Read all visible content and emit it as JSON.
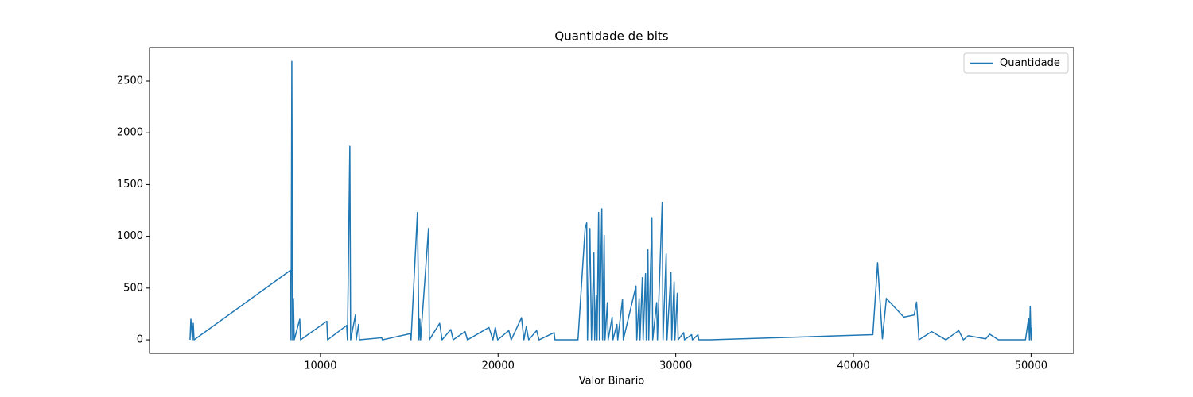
{
  "chart_data": {
    "type": "line",
    "title": "Quantidade de bits",
    "x_label": "Valor Binario",
    "x": [
      2660,
      2707,
      2797,
      2842,
      2886,
      8300,
      8345,
      8390,
      8434,
      8479,
      8524,
      8837,
      8882,
      10358,
      10403,
      11476,
      11521,
      11655,
      11700,
      11969,
      12013,
      12148,
      12192,
      13445,
      13490,
      15056,
      15100,
      15458,
      15548,
      15593,
      15637,
      16085,
      16130,
      16711,
      16845,
      17337,
      17472,
      18143,
      18277,
      19485,
      19709,
      19843,
      19977,
      20603,
      20738,
      21319,
      21453,
      21588,
      21722,
      22169,
      22304,
      23154,
      23199,
      24496,
      24899,
      24988,
      25033,
      25167,
      25257,
      25391,
      25436,
      25525,
      25570,
      25659,
      25704,
      25838,
      25883,
      25972,
      26017,
      26151,
      26196,
      26420,
      26464,
      26688,
      26733,
      27001,
      27046,
      27762,
      27807,
      27941,
      27986,
      28120,
      28165,
      28299,
      28344,
      28433,
      28478,
      28657,
      28702,
      28925,
      28970,
      29238,
      29283,
      29462,
      29507,
      29730,
      29775,
      29909,
      29954,
      30088,
      30133,
      30446,
      30491,
      30894,
      30938,
      31252,
      31297,
      31923,
      41094,
      41363,
      41632,
      41855,
      42839,
      43421,
      43555,
      43689,
      44405,
      45210,
      45926,
      46194,
      46463,
      47447,
      47671,
      48163,
      49684,
      49863,
      49908,
      49952,
      49997,
      50042
    ],
    "series": [
      {
        "name": "Quantidade",
        "color": "#1f77b4",
        "values": [
          0,
          200,
          0,
          160,
          0,
          670,
          0,
          2690,
          0,
          400,
          0,
          200,
          0,
          180,
          0,
          140,
          0,
          1870,
          0,
          240,
          0,
          150,
          0,
          20,
          0,
          60,
          0,
          1230,
          0,
          200,
          0,
          1075,
          0,
          160,
          0,
          100,
          0,
          80,
          0,
          120,
          0,
          120,
          0,
          90,
          0,
          215,
          0,
          130,
          0,
          90,
          0,
          70,
          0,
          0,
          1075,
          1130,
          0,
          1075,
          0,
          840,
          0,
          430,
          0,
          1230,
          0,
          1265,
          0,
          1010,
          0,
          360,
          0,
          220,
          0,
          150,
          0,
          390,
          0,
          520,
          0,
          400,
          0,
          600,
          0,
          640,
          0,
          870,
          0,
          1180,
          0,
          360,
          0,
          1330,
          0,
          830,
          0,
          650,
          0,
          560,
          0,
          450,
          0,
          70,
          0,
          50,
          0,
          50,
          0,
          0,
          50,
          745,
          10,
          400,
          220,
          240,
          365,
          0,
          80,
          0,
          90,
          0,
          40,
          10,
          55,
          0,
          0,
          210,
          0,
          325,
          0,
          120
        ]
      }
    ],
    "xlim": [
      380,
      52400
    ],
    "ylim": [
      -130,
      2822
    ],
    "xticks": [
      10000,
      20000,
      30000,
      40000,
      50000
    ],
    "yticks": [
      0,
      500,
      1000,
      1500,
      2000,
      2500
    ],
    "grid": false,
    "legend": "upper right"
  }
}
